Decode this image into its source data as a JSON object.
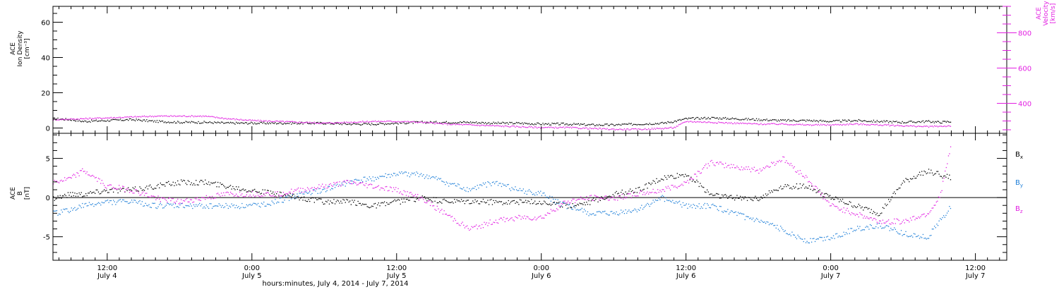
{
  "colors": {
    "black": "#000000",
    "blue": "#1e7fd8",
    "magenta": "#e21ee2"
  },
  "xaxis": {
    "title": "hours:minutes, July  4, 2014 - July  7, 2014",
    "xlim": [
      7.5,
      86.6
    ],
    "ticks": [
      {
        "hours": 12,
        "time": "12:00",
        "date": "July 4"
      },
      {
        "hours": 24,
        "time": "0:00",
        "date": "July 5"
      },
      {
        "hours": 36,
        "time": "12:00",
        "date": "July 5"
      },
      {
        "hours": 48,
        "time": "0:00",
        "date": "July 6"
      },
      {
        "hours": 60,
        "time": "12:00",
        "date": "July 6"
      },
      {
        "hours": 72,
        "time": "0:00",
        "date": "July 7"
      },
      {
        "hours": 84,
        "time": "12:00",
        "date": "July 7"
      }
    ],
    "minor_step_hours": 1
  },
  "chart_data": [
    {
      "type": "scatter",
      "panel": "ion-density-velocity",
      "ylabel_left": [
        "ACE",
        "Ion Density",
        "[cm⁻³]"
      ],
      "ylim_left": [
        -3,
        69
      ],
      "yticks_left": [
        0,
        20,
        40,
        60
      ],
      "ylabel_right": [
        "ACE",
        "Velocity",
        "[km/s]"
      ],
      "ylim_right": [
        230,
        950
      ],
      "yticks_right": [
        400,
        600,
        800
      ],
      "series": [
        {
          "name": "",
          "axis": "left",
          "color": "black",
          "x": [
            7.5,
            9,
            10,
            12,
            14,
            16,
            18,
            20,
            22,
            24,
            26,
            28,
            30,
            32,
            34,
            36,
            38,
            40,
            42,
            44,
            46,
            48,
            50,
            52,
            54,
            56,
            58,
            59,
            60,
            62,
            64,
            66,
            68,
            70,
            72,
            74,
            76,
            78,
            80,
            81,
            82
          ],
          "y": [
            5.5,
            5,
            4,
            4.5,
            5,
            4,
            3.5,
            3.5,
            3,
            3,
            3,
            3,
            3,
            2.5,
            2.5,
            3,
            3.5,
            3.5,
            3.5,
            3,
            3,
            2.5,
            2.5,
            2,
            2,
            2.5,
            3,
            4,
            5.5,
            6,
            5.5,
            5,
            4.5,
            4.5,
            4,
            4.5,
            4,
            3.5,
            4,
            3.5,
            4
          ]
        },
        {
          "name": "",
          "axis": "right",
          "color": "magenta",
          "x": [
            7.5,
            10,
            12,
            14,
            16,
            18,
            20,
            22,
            24,
            26,
            28,
            30,
            32,
            34,
            36,
            38,
            40,
            42,
            44,
            46,
            48,
            50,
            52,
            54,
            56,
            58,
            59,
            60,
            62,
            64,
            66,
            68,
            70,
            72,
            74,
            76,
            78,
            80,
            82
          ],
          "y": [
            310,
            315,
            320,
            325,
            330,
            330,
            330,
            315,
            305,
            300,
            295,
            290,
            295,
            300,
            300,
            295,
            285,
            280,
            275,
            270,
            265,
            265,
            260,
            255,
            255,
            260,
            265,
            300,
            295,
            290,
            285,
            285,
            280,
            280,
            285,
            280,
            275,
            270,
            275
          ]
        }
      ]
    },
    {
      "type": "scatter",
      "panel": "magnetic-field",
      "ylabel_left": [
        "ACE",
        "B",
        "[nT]"
      ],
      "ylim_left": [
        -8,
        8.2
      ],
      "yticks_left": [
        -5,
        0,
        5
      ],
      "zero_line": true,
      "series": [
        {
          "name": "Bx",
          "label_main": "B",
          "label_sub": "x",
          "color": "black",
          "x": [
            7.5,
            9,
            10,
            12,
            14,
            16,
            18,
            20,
            22,
            24,
            26,
            28,
            30,
            32,
            34,
            36,
            38,
            40,
            42,
            44,
            46,
            48,
            50,
            52,
            54,
            56,
            58,
            60,
            62,
            64,
            66,
            68,
            70,
            72,
            74,
            76,
            78,
            80,
            82
          ],
          "y": [
            0,
            0.5,
            0.5,
            1,
            1,
            1.5,
            2,
            2,
            1.5,
            1,
            0.5,
            0,
            -0.5,
            -0.5,
            -1,
            -0.5,
            0,
            -0.5,
            -0.5,
            -0.5,
            -0.5,
            -0.5,
            -1,
            -0.5,
            0.5,
            1,
            2.5,
            3,
            0.5,
            0,
            0,
            1.5,
            1.5,
            0,
            -1,
            -2,
            2,
            3.5,
            2.5
          ]
        },
        {
          "name": "By",
          "label_main": "B",
          "label_sub": "y",
          "color": "blue",
          "x": [
            7.5,
            9,
            10,
            12,
            14,
            16,
            18,
            20,
            22,
            24,
            26,
            28,
            30,
            32,
            34,
            36,
            38,
            40,
            42,
            44,
            46,
            48,
            50,
            52,
            54,
            56,
            58,
            60,
            62,
            64,
            66,
            68,
            70,
            72,
            74,
            76,
            78,
            80,
            82
          ],
          "y": [
            -2,
            -1.5,
            -1,
            -0.5,
            -0.5,
            -1,
            -1,
            -1,
            -1,
            -1,
            -0.5,
            0.5,
            1,
            2,
            2.5,
            3,
            3,
            2,
            1,
            2,
            1,
            0.5,
            -1,
            -2,
            -2,
            -1.5,
            0,
            -1,
            -1,
            -2,
            -3,
            -4,
            -5.5,
            -5,
            -4,
            -3.5,
            -4.5,
            -5,
            -1
          ]
        },
        {
          "name": "Bz",
          "label_main": "B",
          "label_sub": "z",
          "color": "magenta",
          "x": [
            7.5,
            9,
            10,
            12,
            14,
            16,
            18,
            20,
            22,
            24,
            26,
            28,
            30,
            32,
            34,
            36,
            38,
            40,
            42,
            44,
            46,
            48,
            50,
            52,
            54,
            56,
            58,
            60,
            62,
            64,
            66,
            68,
            70,
            72,
            74,
            76,
            78,
            80,
            81,
            82
          ],
          "y": [
            2,
            2.5,
            3.5,
            1.5,
            1,
            0,
            -0.5,
            0,
            0.5,
            0.5,
            0.5,
            1,
            1.5,
            2,
            1.5,
            1,
            0,
            -2,
            -4,
            -3,
            -2.5,
            -2.5,
            -0.5,
            0,
            0,
            0.5,
            1,
            2,
            4.5,
            4,
            3.5,
            5,
            2.5,
            -1,
            -2,
            -3,
            -3,
            -2,
            0,
            7
          ]
        }
      ]
    }
  ]
}
